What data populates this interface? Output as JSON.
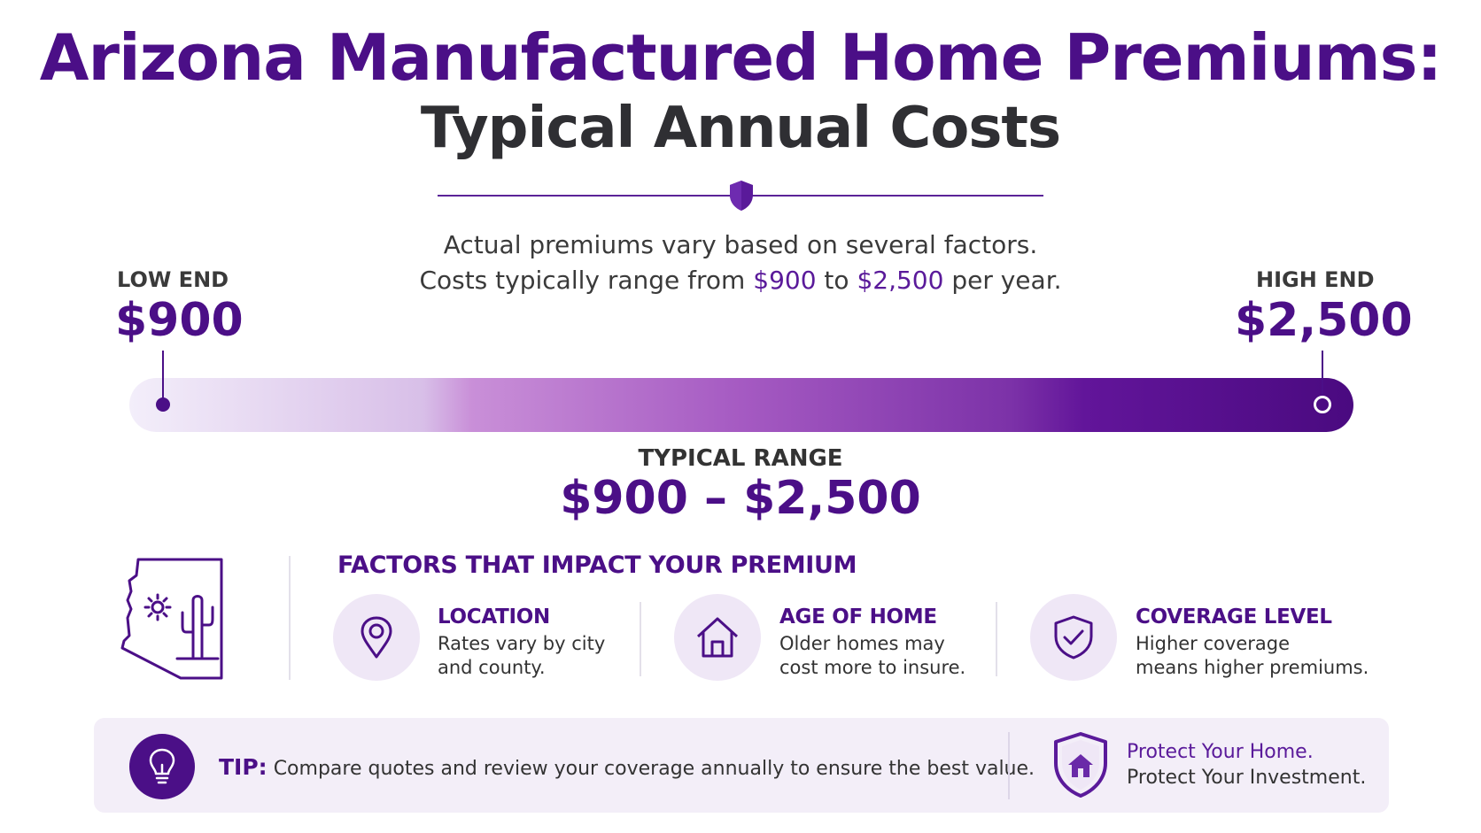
{
  "title": {
    "line1": "Arizona Manufactured Home Premiums:",
    "line2": "Typical Annual Costs"
  },
  "subtitle": {
    "line1": "Actual premiums vary based on several factors.",
    "line2_prefix": "Costs typically range from",
    "low": "$900",
    "to": "to",
    "high": "$2,500",
    "line2_suffix": "per year."
  },
  "range": {
    "low_label": "LOW END",
    "low_value": "$900",
    "high_label": "HIGH END",
    "high_value": "$2,500",
    "typical_label": "TYPICAL RANGE",
    "typical_value": "$900 – $2,500"
  },
  "factors": {
    "heading": "FACTORS THAT IMPACT YOUR PREMIUM",
    "items": [
      {
        "title": "LOCATION",
        "desc1": "Rates vary by city",
        "desc2": "and county.",
        "icon": "location-pin-icon"
      },
      {
        "title": "AGE OF HOME",
        "desc1": "Older homes may",
        "desc2": "cost more to insure.",
        "icon": "house-icon"
      },
      {
        "title": "COVERAGE LEVEL",
        "desc1": "Higher coverage",
        "desc2": "means higher premiums.",
        "icon": "shield-check-icon"
      }
    ]
  },
  "tip": {
    "label": "TIP:",
    "text": "Compare quotes and review your coverage annually to ensure the best value."
  },
  "protect": {
    "line1": "Protect Your Home.",
    "line2": "Protect Your Investment."
  },
  "colors": {
    "brand_purple": "#4b0f87",
    "dark_text": "#333333",
    "light_purple": "#efe7f6"
  }
}
